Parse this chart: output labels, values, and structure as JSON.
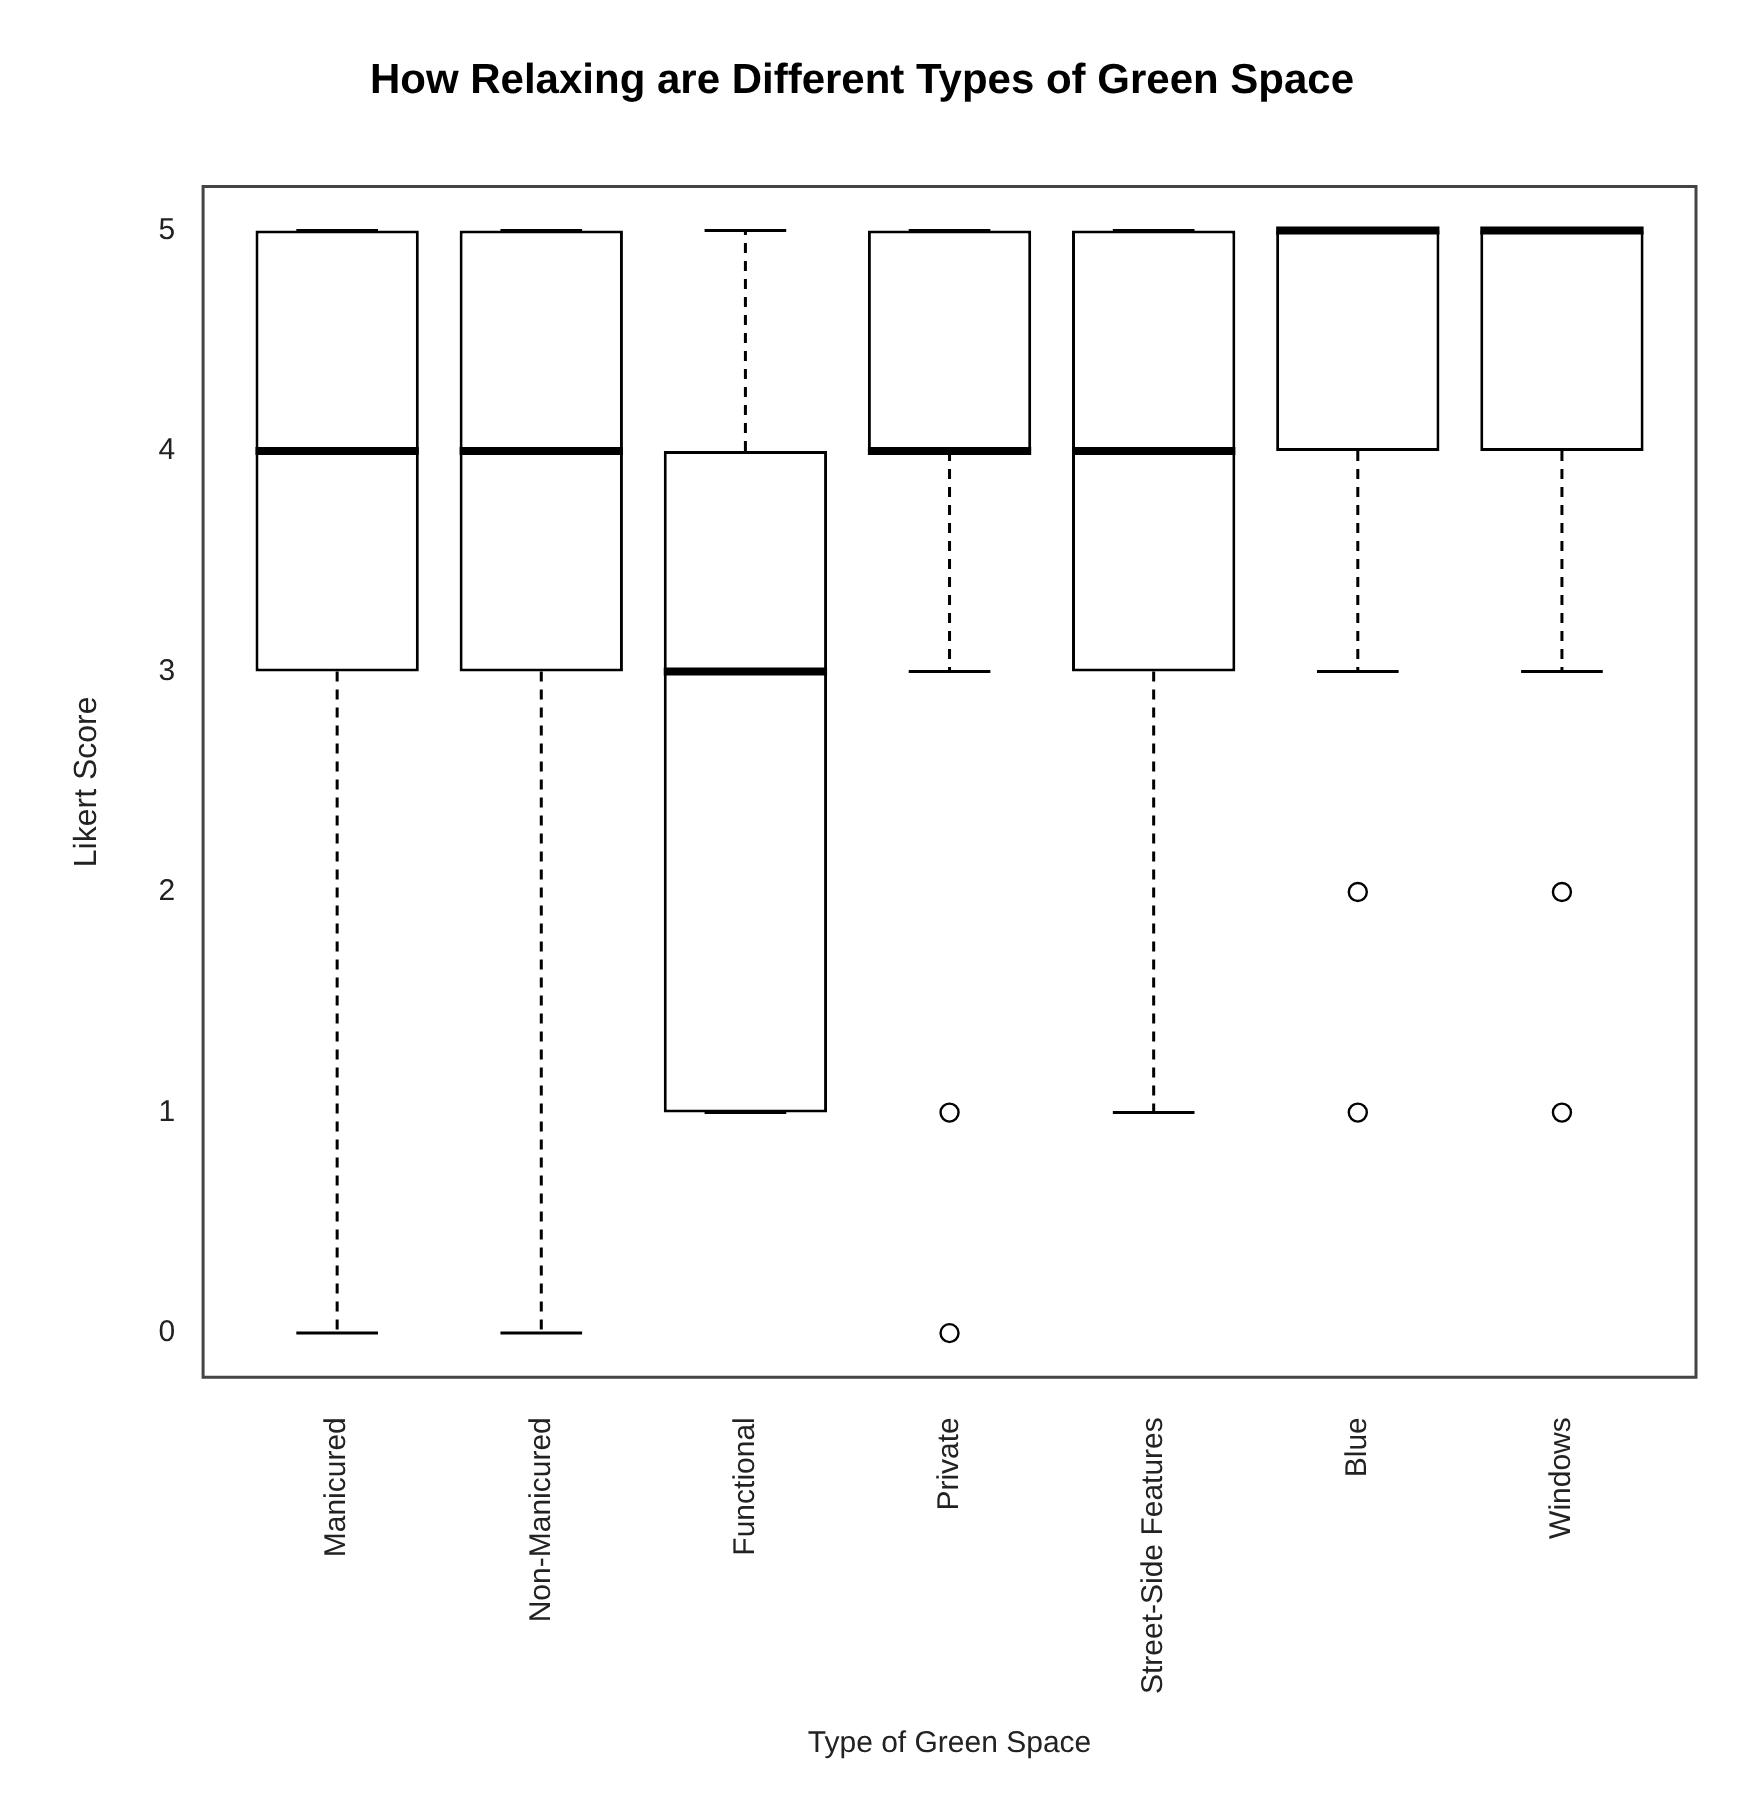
{
  "chart_data": {
    "type": "box",
    "title": "How Relaxing are Different Types of Green Space",
    "xlabel": "Type of Green Space",
    "ylabel": "Likert Score",
    "categories": [
      "Manicured",
      "Non-Manicured",
      "Functional",
      "Private",
      "Street-Side Features",
      "Blue",
      "Windows"
    ],
    "boxes": [
      {
        "low": 0,
        "q1": 3,
        "median": 4,
        "q3": 5,
        "high": 5
      },
      {
        "low": 0,
        "q1": 3,
        "median": 4,
        "q3": 5,
        "high": 5
      },
      {
        "low": 1,
        "q1": 1,
        "median": 3,
        "q3": 4,
        "high": 5
      },
      {
        "low": 3,
        "q1": 4,
        "median": 4,
        "q3": 5,
        "high": 5,
        "outliers": [
          1,
          0
        ]
      },
      {
        "low": 1,
        "q1": 3,
        "median": 4,
        "q3": 5,
        "high": 5
      },
      {
        "low": 3,
        "q1": 4,
        "median": 5,
        "q3": 5,
        "high": 5,
        "outliers": [
          2,
          1
        ]
      },
      {
        "low": 3,
        "q1": 4,
        "median": 5,
        "q3": 5,
        "high": 5,
        "outliers": [
          2,
          1
        ]
      }
    ],
    "ylim": [
      -0.2,
      5.2
    ],
    "yticks": [
      0,
      1,
      2,
      3,
      4,
      5
    ]
  }
}
